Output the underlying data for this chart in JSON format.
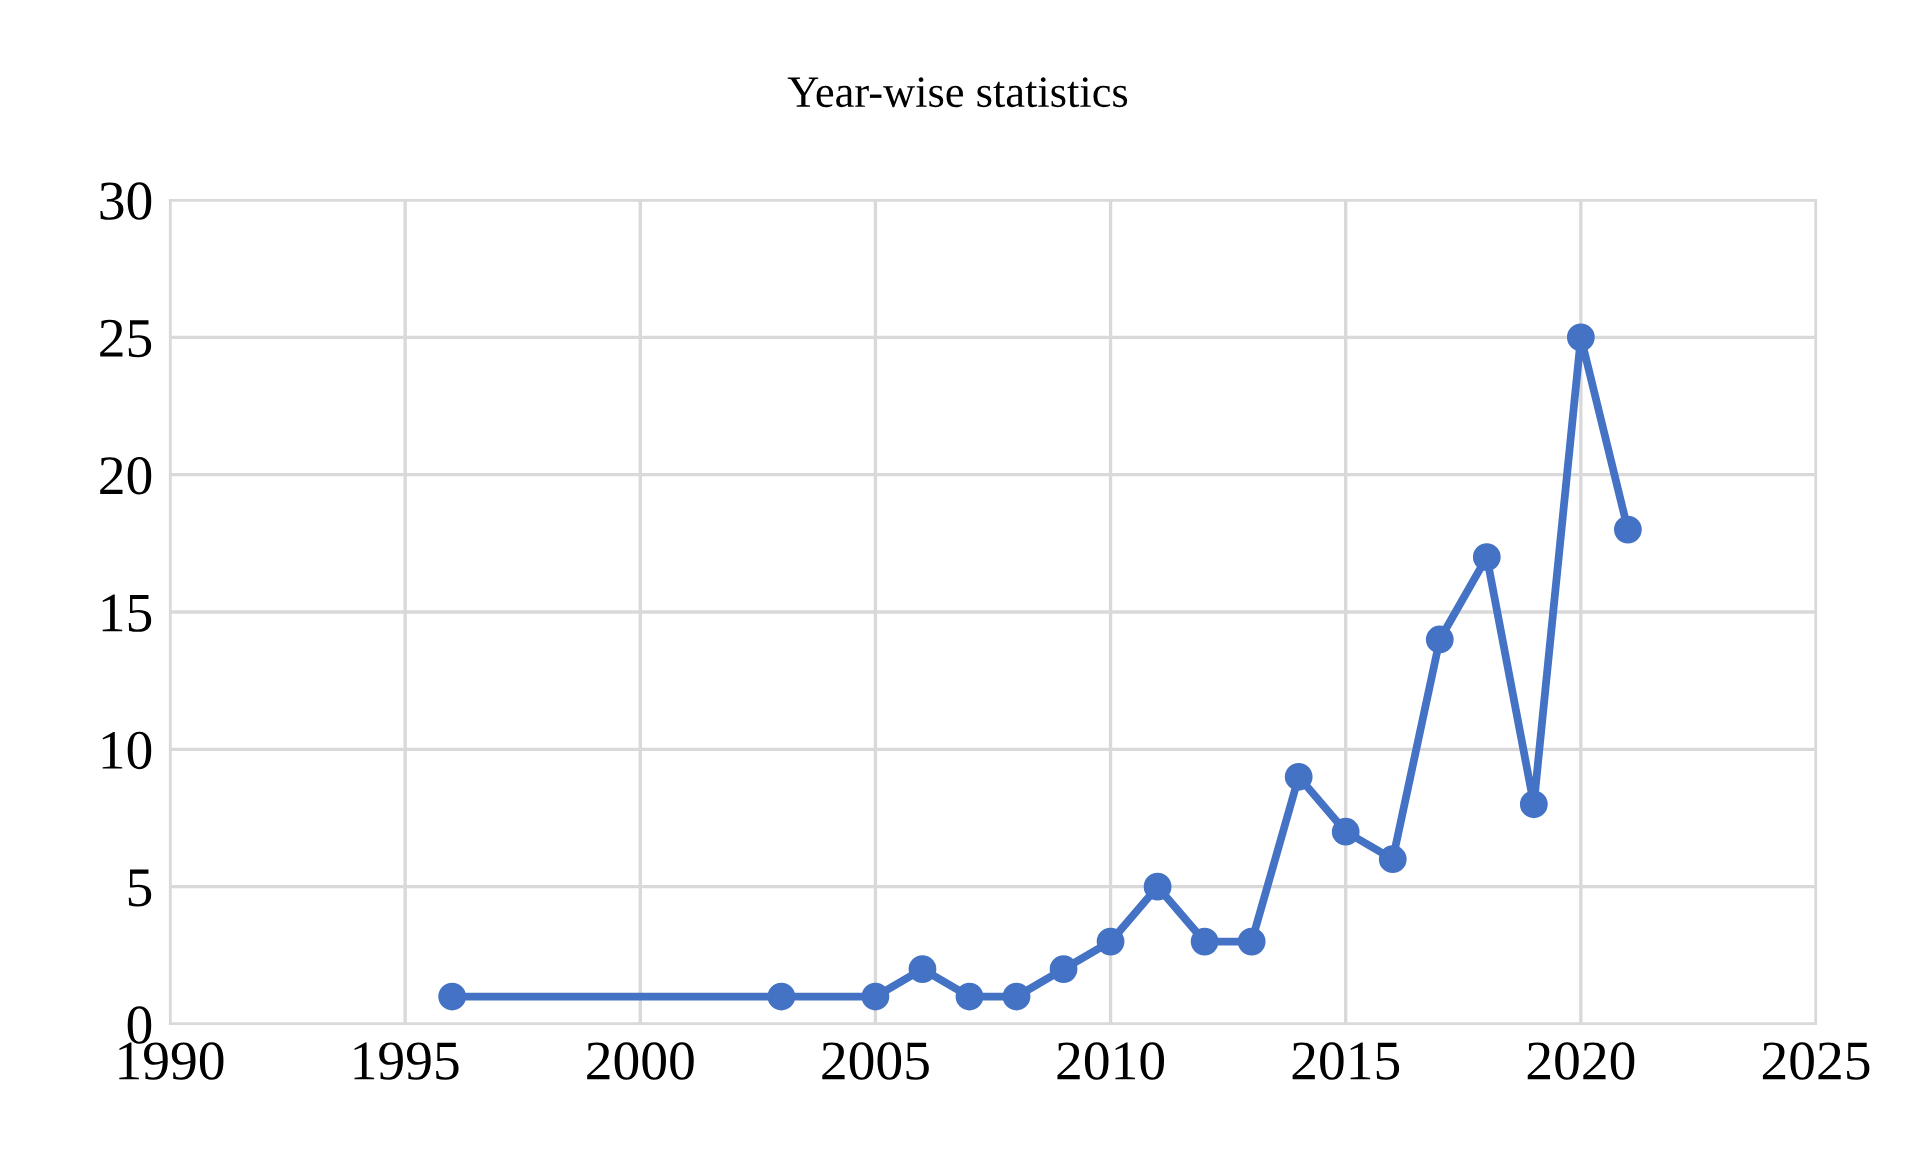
{
  "chart_data": {
    "type": "line",
    "title": "Year-wise statistics",
    "x": [
      1996,
      2003,
      2005,
      2006,
      2007,
      2008,
      2009,
      2010,
      2011,
      2012,
      2013,
      2014,
      2015,
      2016,
      2017,
      2018,
      2019,
      2020,
      2021
    ],
    "series": [
      {
        "color": "#4472c4",
        "values": [
          1,
          1,
          1,
          2,
          1,
          1,
          2,
          3,
          5,
          3,
          3,
          9,
          7,
          6,
          14,
          17,
          8,
          25,
          18
        ]
      }
    ],
    "xlim": [
      1990,
      2025
    ],
    "xticks": [
      1990,
      1995,
      2000,
      2005,
      2010,
      2015,
      2020,
      2025
    ],
    "ylim": [
      0,
      30
    ],
    "yticks": [
      0,
      5,
      10,
      15,
      20,
      25,
      30
    ],
    "grid": true,
    "marker": "circle",
    "line_style": "solid"
  }
}
